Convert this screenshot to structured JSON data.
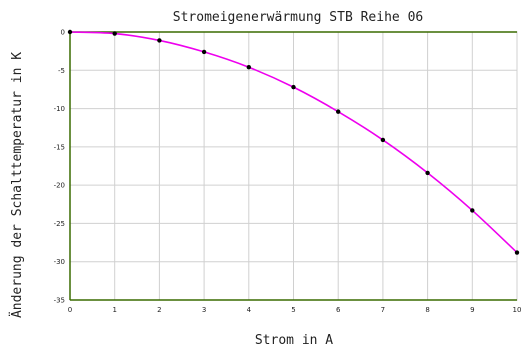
{
  "chart_data": {
    "type": "line",
    "title": "Stromeigenerwärmung STB Reihe 06",
    "xlabel": "Strom in A",
    "ylabel": "Änderung der Schalttemperatur in K",
    "xlim": [
      0,
      10
    ],
    "ylim": [
      -35,
      0
    ],
    "x_ticks": [
      0,
      1,
      2,
      3,
      4,
      5,
      6,
      7,
      8,
      9,
      10
    ],
    "y_ticks": [
      0,
      -5,
      -10,
      -15,
      -20,
      -25,
      -30,
      -35
    ],
    "grid": true,
    "series": [
      {
        "type": "line",
        "color": "#ee00ee",
        "marker_color": "#000000",
        "x": [
          0,
          1,
          2,
          3,
          4,
          5,
          6,
          7,
          8,
          9,
          10
        ],
        "y": [
          0,
          -0.2,
          -1.1,
          -2.6,
          -4.6,
          -7.2,
          -10.4,
          -14.1,
          -18.4,
          -23.3,
          -28.8
        ]
      }
    ],
    "reference_line": {
      "y": 0,
      "color": "#3a6b00"
    },
    "axis_color": "#3a6b00",
    "grid_color": "#d0d0d0"
  }
}
